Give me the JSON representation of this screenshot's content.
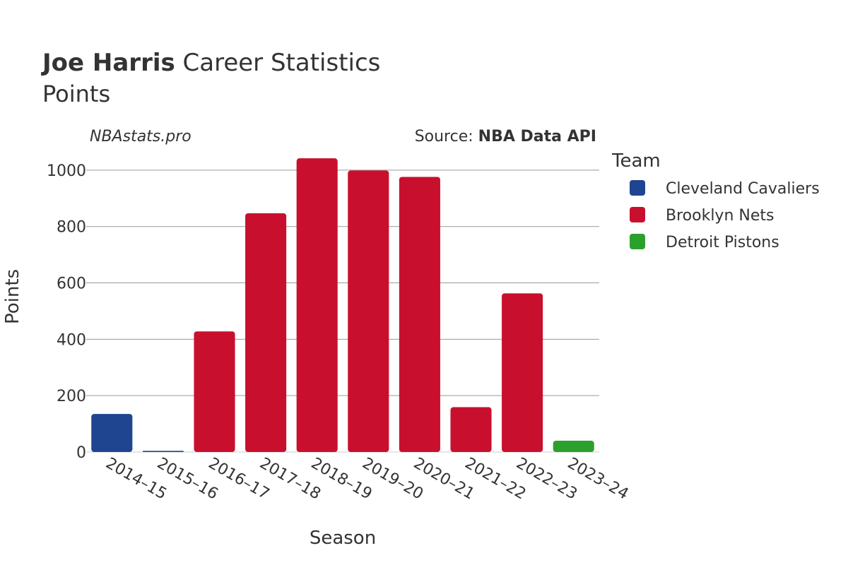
{
  "title": {
    "player": "Joe Harris",
    "rest": " Career Statistics"
  },
  "subtitle": "Points",
  "watermark": "NBAstats.pro",
  "source": {
    "prefix": "Source: ",
    "name": "NBA Data API"
  },
  "chart_data": {
    "type": "bar",
    "xlabel": "Season",
    "ylabel": "Points",
    "ylim": [
      0,
      1090
    ],
    "yticks": [
      0,
      200,
      400,
      600,
      800,
      1000
    ],
    "grid": true,
    "legend": {
      "title": "Team",
      "placement": "right"
    },
    "teams": [
      {
        "name": "Cleveland Cavaliers",
        "color": "#1f4590"
      },
      {
        "name": "Brooklyn Nets",
        "color": "#c8102e"
      },
      {
        "name": "Detroit Pistons",
        "color": "#2ca02c"
      }
    ],
    "bars": [
      {
        "season": "2014–15",
        "team": "Cleveland Cavaliers",
        "value": 135
      },
      {
        "season": "2015–16",
        "team": "Cleveland Cavaliers",
        "value": 4
      },
      {
        "season": "2016–17",
        "team": "Brooklyn Nets",
        "value": 428
      },
      {
        "season": "2017–18",
        "team": "Brooklyn Nets",
        "value": 847
      },
      {
        "season": "2018–19",
        "team": "Brooklyn Nets",
        "value": 1042
      },
      {
        "season": "2019–20",
        "team": "Brooklyn Nets",
        "value": 999
      },
      {
        "season": "2020–21",
        "team": "Brooklyn Nets",
        "value": 976
      },
      {
        "season": "2021–22",
        "team": "Brooklyn Nets",
        "value": 159
      },
      {
        "season": "2022–23",
        "team": "Brooklyn Nets",
        "value": 563
      },
      {
        "season": "2023–24",
        "team": "Detroit Pistons",
        "value": 40
      }
    ]
  }
}
